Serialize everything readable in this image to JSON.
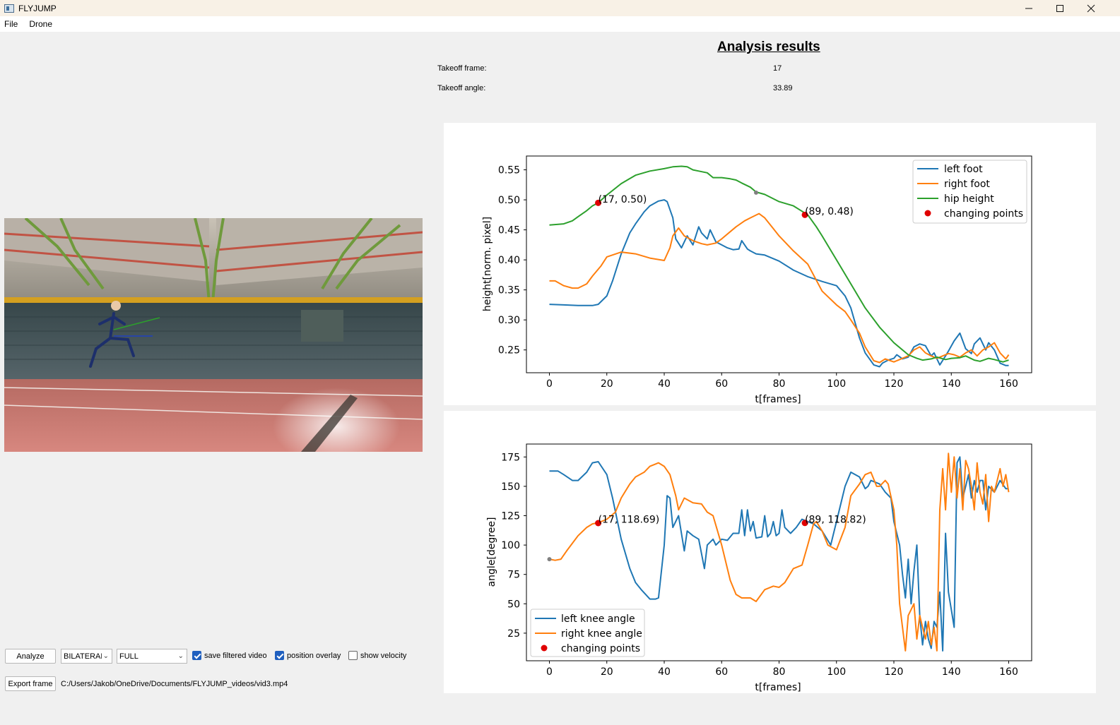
{
  "window": {
    "title": "FLYJUMP",
    "controls": [
      "minimize-icon",
      "maximize-icon",
      "close-icon"
    ]
  },
  "menu": {
    "items": [
      "File",
      "Drone"
    ]
  },
  "results": {
    "title": "Analysis results",
    "takeoff_frame_label": "Takeoff frame:",
    "takeoff_frame_value": "17",
    "takeoff_angle_label": "Takeoff angle:",
    "takeoff_angle_value": "33.89"
  },
  "controls": {
    "analyze_label": "Analyze",
    "mode_select": "BILATERAL",
    "range_select": "FULL",
    "save_filtered_video": {
      "label": "save filtered video",
      "checked": true
    },
    "position_overlay": {
      "label": "position overlay",
      "checked": true
    },
    "show_velocity": {
      "label": "show velocity",
      "checked": false
    },
    "export_frame_label": "Export frame",
    "file_path": "C:/Users/Jakob/OneDrive/Documents/FLYJUMP_videos/vid3.mp4"
  },
  "colors": {
    "blue": "#1f77b4",
    "orange": "#ff7f0e",
    "green": "#2ca02c",
    "red": "#d62728"
  },
  "chart_data": [
    {
      "type": "line",
      "xlabel": "t[frames]",
      "ylabel": "height[norm. pixel]",
      "xlim": [
        -8,
        168
      ],
      "ylim": [
        0.212,
        0.573
      ],
      "xticks": [
        0,
        20,
        40,
        60,
        80,
        100,
        120,
        140,
        160
      ],
      "yticks": [
        0.25,
        0.3,
        0.35,
        0.4,
        0.45,
        0.5,
        0.55
      ],
      "ytick_labels": [
        "0.25",
        "0.30",
        "0.35",
        "0.40",
        "0.45",
        "0.50",
        "0.55"
      ],
      "legend_position": "top-right",
      "series": [
        {
          "name": "left foot",
          "color": "#1f77b4",
          "x": [
            0,
            5,
            10,
            15,
            17,
            20,
            22,
            25,
            28,
            30,
            33,
            35,
            38,
            40,
            41,
            43,
            44,
            46,
            48,
            50,
            52,
            53,
            55,
            56,
            58,
            60,
            62,
            64,
            66,
            67,
            69,
            70,
            72,
            75,
            80,
            85,
            90,
            95,
            100,
            103,
            105,
            108,
            110,
            113,
            115,
            116,
            118,
            120,
            121,
            123,
            125,
            127,
            129,
            131,
            133,
            134,
            136,
            138,
            139,
            141,
            143,
            145,
            147,
            148,
            150,
            152,
            153,
            155,
            157,
            159,
            160
          ],
          "y": [
            0.326,
            0.325,
            0.324,
            0.324,
            0.326,
            0.34,
            0.365,
            0.41,
            0.445,
            0.46,
            0.48,
            0.49,
            0.498,
            0.5,
            0.497,
            0.47,
            0.435,
            0.42,
            0.44,
            0.425,
            0.455,
            0.445,
            0.435,
            0.45,
            0.43,
            0.425,
            0.42,
            0.417,
            0.418,
            0.432,
            0.418,
            0.415,
            0.41,
            0.408,
            0.398,
            0.383,
            0.372,
            0.364,
            0.357,
            0.34,
            0.32,
            0.27,
            0.245,
            0.225,
            0.222,
            0.228,
            0.233,
            0.236,
            0.242,
            0.235,
            0.238,
            0.255,
            0.26,
            0.257,
            0.24,
            0.245,
            0.225,
            0.24,
            0.248,
            0.265,
            0.278,
            0.252,
            0.244,
            0.26,
            0.27,
            0.25,
            0.262,
            0.25,
            0.228,
            0.224,
            0.224
          ]
        },
        {
          "name": "right foot",
          "color": "#ff7f0e",
          "x": [
            0,
            2,
            5,
            8,
            10,
            13,
            15,
            18,
            20,
            25,
            30,
            35,
            40,
            42,
            43,
            45,
            47,
            50,
            53,
            55,
            58,
            60,
            63,
            65,
            68,
            70,
            73,
            75,
            78,
            80,
            85,
            90,
            95,
            100,
            103,
            105,
            108,
            110,
            113,
            115,
            117,
            120,
            123,
            125,
            127,
            129,
            131,
            133,
            135,
            137,
            139,
            141,
            143,
            145,
            147,
            149,
            151,
            153,
            155,
            157,
            159,
            160
          ],
          "y": [
            0.365,
            0.365,
            0.357,
            0.353,
            0.353,
            0.36,
            0.373,
            0.39,
            0.405,
            0.413,
            0.41,
            0.403,
            0.399,
            0.42,
            0.44,
            0.453,
            0.44,
            0.432,
            0.427,
            0.425,
            0.428,
            0.435,
            0.447,
            0.455,
            0.465,
            0.47,
            0.477,
            0.47,
            0.452,
            0.44,
            0.415,
            0.393,
            0.348,
            0.325,
            0.314,
            0.3,
            0.278,
            0.255,
            0.232,
            0.229,
            0.235,
            0.23,
            0.236,
            0.24,
            0.25,
            0.255,
            0.245,
            0.24,
            0.236,
            0.24,
            0.244,
            0.242,
            0.238,
            0.245,
            0.25,
            0.24,
            0.25,
            0.255,
            0.262,
            0.245,
            0.235,
            0.242
          ]
        },
        {
          "name": "hip height",
          "color": "#2ca02c",
          "x": [
            0,
            5,
            8,
            10,
            13,
            15,
            17,
            20,
            25,
            30,
            35,
            40,
            43,
            46,
            48,
            50,
            52,
            55,
            57,
            60,
            63,
            65,
            67,
            70,
            72,
            75,
            80,
            85,
            87,
            90,
            93,
            95,
            100,
            105,
            110,
            115,
            120,
            125,
            128,
            130,
            133,
            135,
            138,
            140,
            143,
            145,
            148,
            150,
            153,
            155,
            158,
            160
          ],
          "y": [
            0.458,
            0.46,
            0.465,
            0.472,
            0.482,
            0.49,
            0.495,
            0.508,
            0.527,
            0.541,
            0.548,
            0.552,
            0.555,
            0.556,
            0.555,
            0.55,
            0.548,
            0.545,
            0.537,
            0.537,
            0.535,
            0.533,
            0.528,
            0.521,
            0.513,
            0.509,
            0.497,
            0.49,
            0.484,
            0.475,
            0.455,
            0.44,
            0.4,
            0.36,
            0.32,
            0.288,
            0.262,
            0.242,
            0.236,
            0.233,
            0.235,
            0.238,
            0.234,
            0.236,
            0.237,
            0.24,
            0.233,
            0.231,
            0.236,
            0.234,
            0.23,
            0.233
          ]
        }
      ],
      "changing_points": {
        "name": "changing points",
        "color": "#d62728",
        "points": [
          [
            17,
            0.495
          ],
          [
            89,
            0.475
          ]
        ],
        "labels": [
          "(17, 0.50)",
          "(89, 0.48)"
        ]
      },
      "gray_point": [
        72,
        0.512
      ]
    },
    {
      "type": "line",
      "xlabel": "t[frames]",
      "ylabel": "angle[degree]",
      "xlim": [
        -8,
        168
      ],
      "ylim": [
        1.5,
        186
      ],
      "xticks": [
        0,
        20,
        40,
        60,
        80,
        100,
        120,
        140,
        160
      ],
      "yticks": [
        25,
        50,
        75,
        100,
        125,
        150,
        175
      ],
      "ytick_labels": [
        "25",
        "50",
        "75",
        "100",
        "125",
        "150",
        "175"
      ],
      "legend_position": "bottom-left",
      "series": [
        {
          "name": "left knee angle",
          "color": "#1f77b4",
          "x": [
            0,
            3,
            5,
            8,
            10,
            13,
            15,
            17,
            20,
            22,
            25,
            28,
            30,
            32,
            35,
            37,
            38,
            40,
            41,
            42,
            43,
            45,
            47,
            48,
            50,
            52,
            54,
            55,
            57,
            58,
            60,
            62,
            64,
            66,
            67,
            68,
            69,
            70,
            71,
            72,
            74,
            75,
            76,
            77,
            78,
            79,
            80,
            81,
            82,
            84,
            86,
            88,
            90,
            92,
            95,
            98,
            100,
            103,
            105,
            108,
            110,
            111,
            112,
            115,
            117,
            119,
            120,
            122,
            123,
            124,
            125,
            126,
            127,
            128,
            129,
            130,
            131,
            132,
            133,
            134,
            135,
            136,
            137,
            138,
            139,
            140,
            141,
            142,
            143,
            144,
            145,
            146,
            147,
            148,
            149,
            150,
            151,
            152,
            153,
            155,
            157,
            159,
            160
          ],
          "y": [
            163,
            163,
            160,
            155,
            155,
            162,
            170,
            171,
            160,
            140,
            105,
            80,
            68,
            62,
            54,
            54,
            55,
            100,
            142,
            140,
            115,
            125,
            95,
            112,
            108,
            105,
            80,
            100,
            105,
            100,
            105,
            104,
            110,
            110,
            130,
            108,
            130,
            112,
            120,
            106,
            107,
            125,
            107,
            110,
            120,
            108,
            110,
            130,
            115,
            110,
            115,
            122,
            120,
            118,
            112,
            100,
            120,
            150,
            162,
            158,
            148,
            150,
            155,
            152,
            145,
            140,
            120,
            100,
            75,
            55,
            88,
            50,
            78,
            100,
            40,
            15,
            35,
            20,
            12,
            35,
            30,
            60,
            10,
            110,
            60,
            45,
            30,
            170,
            175,
            140,
            150,
            160,
            140,
            155,
            145,
            155,
            155,
            130,
            150,
            145,
            155,
            148,
            148
          ]
        },
        {
          "name": "right knee angle",
          "color": "#ff7f0e",
          "x": [
            0,
            2,
            4,
            6,
            10,
            13,
            15,
            17,
            20,
            23,
            25,
            28,
            30,
            33,
            35,
            37,
            38,
            40,
            42,
            44,
            45,
            47,
            50,
            53,
            55,
            57,
            60,
            63,
            65,
            67,
            70,
            72,
            75,
            78,
            80,
            82,
            85,
            88,
            90,
            92,
            93,
            95,
            97,
            100,
            103,
            105,
            108,
            110,
            112,
            114,
            115,
            117,
            118,
            120,
            121,
            122,
            123,
            124,
            125,
            127,
            128,
            129,
            130,
            131,
            132,
            133,
            134,
            135,
            136,
            137,
            138,
            139,
            140,
            141,
            142,
            143,
            144,
            145,
            146,
            147,
            148,
            149,
            150,
            151,
            152,
            153,
            154,
            155,
            157,
            158,
            159,
            160
          ],
          "y": [
            88,
            87,
            88,
            95,
            108,
            115,
            118,
            119,
            122,
            128,
            140,
            152,
            158,
            162,
            167,
            169,
            170,
            167,
            160,
            142,
            130,
            140,
            136,
            135,
            128,
            125,
            100,
            70,
            58,
            55,
            55,
            52,
            62,
            65,
            64,
            68,
            80,
            83,
            100,
            118,
            120,
            112,
            100,
            96,
            115,
            142,
            152,
            160,
            162,
            150,
            150,
            155,
            152,
            130,
            100,
            50,
            30,
            10,
            40,
            50,
            20,
            40,
            30,
            20,
            35,
            15,
            30,
            10,
            130,
            165,
            130,
            178,
            145,
            175,
            140,
            165,
            130,
            172,
            165,
            150,
            130,
            170,
            145,
            135,
            160,
            120,
            150,
            145,
            165,
            150,
            160,
            145
          ]
        }
      ],
      "changing_points": {
        "name": "changing points",
        "color": "#d62728",
        "points": [
          [
            17,
            118.69
          ],
          [
            89,
            118.82
          ]
        ],
        "labels": [
          "(17, 118.69)",
          "(89, 118.82)"
        ]
      },
      "gray_point": [
        0,
        88
      ]
    }
  ]
}
